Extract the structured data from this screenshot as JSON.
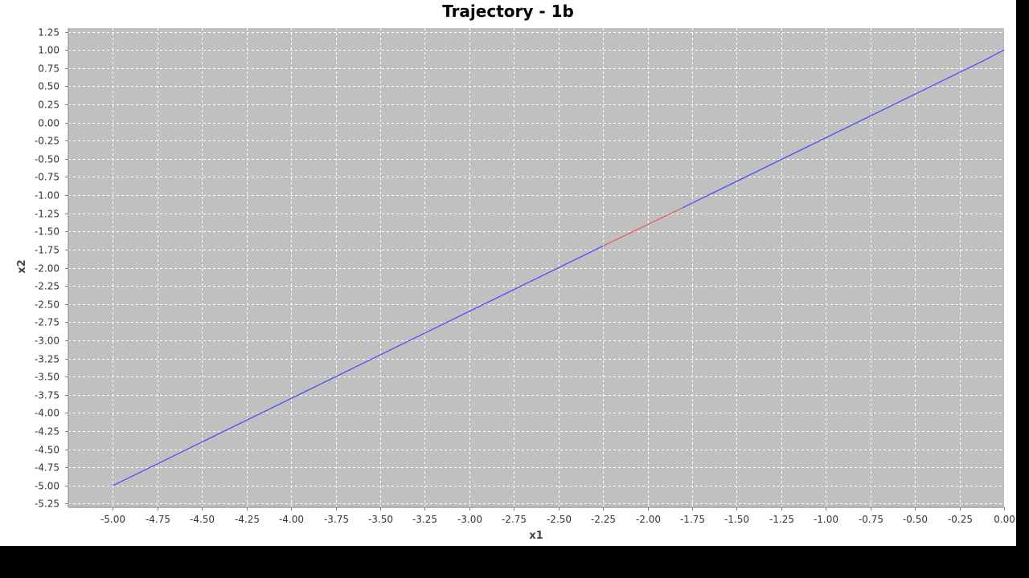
{
  "chart_data": {
    "type": "line",
    "title": "Trajectory - 1b",
    "xlabel": "x1",
    "ylabel": "x2",
    "xlim": [
      -5.25,
      0.0
    ],
    "ylim": [
      -5.3,
      1.3
    ],
    "grid": true,
    "legend": false,
    "x_ticks": [
      "-5.00",
      "-4.75",
      "-4.50",
      "-4.25",
      "-4.00",
      "-3.75",
      "-3.50",
      "-3.25",
      "-3.00",
      "-2.75",
      "-2.50",
      "-2.25",
      "-2.00",
      "-1.75",
      "-1.50",
      "-1.25",
      "-1.00",
      "-0.75",
      "-0.50",
      "-0.25",
      "0.00"
    ],
    "y_ticks": [
      "1.25",
      "1.00",
      "0.75",
      "0.50",
      "0.25",
      "0.00",
      "-0.25",
      "-0.50",
      "-0.75",
      "-1.00",
      "-1.25",
      "-1.50",
      "-1.75",
      "-2.00",
      "-2.25",
      "-2.50",
      "-2.75",
      "-3.00",
      "-3.25",
      "-3.50",
      "-3.75",
      "-4.00",
      "-4.25",
      "-4.50",
      "-4.75",
      "-5.00",
      "-5.25"
    ],
    "series": [
      {
        "color": "#4d4dff",
        "x": [
          -5.0,
          -2.25
        ],
        "y": [
          -5.0,
          -1.7
        ]
      },
      {
        "color": "#e06060",
        "x": [
          -2.25,
          -1.8
        ],
        "y": [
          -1.7,
          -1.17
        ]
      },
      {
        "color": "#4d4dff",
        "x": [
          -1.8,
          -0.1,
          0.0
        ],
        "y": [
          -1.17,
          0.87,
          1.0
        ]
      }
    ]
  },
  "colors": {
    "plot_background": "#c0c0c0",
    "grid": "#ffffff",
    "page_background": "#ffffff",
    "frame": "#000000"
  }
}
